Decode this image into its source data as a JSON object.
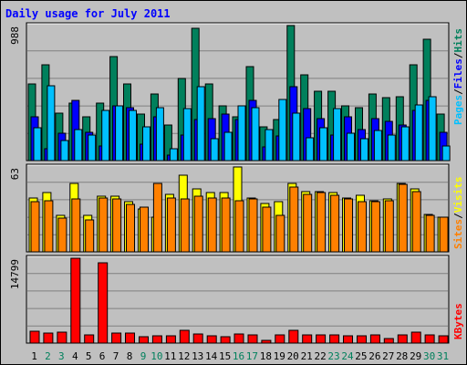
{
  "chart_data": [
    {
      "type": "bar",
      "title": "Daily usage for July 2011",
      "max_label": "988",
      "ylim": [
        0,
        988
      ],
      "grid": true,
      "categories": [
        "1",
        "2",
        "3",
        "4",
        "5",
        "6",
        "7",
        "8",
        "9",
        "10",
        "11",
        "12",
        "13",
        "14",
        "15",
        "16",
        "17",
        "18",
        "19",
        "20",
        "21",
        "22",
        "23",
        "24",
        "25",
        "26",
        "27",
        "28",
        "29",
        "30",
        "31"
      ],
      "weekend_days": [
        "2",
        "3",
        "9",
        "10",
        "16",
        "17",
        "23",
        "24",
        "30",
        "31"
      ],
      "series": [
        {
          "name": "Hits",
          "color": "#00805c",
          "values": [
            560,
            700,
            350,
            420,
            320,
            420,
            760,
            560,
            340,
            490,
            260,
            600,
            970,
            560,
            400,
            320,
            690,
            250,
            300,
            990,
            630,
            510,
            510,
            400,
            390,
            490,
            460,
            470,
            700,
            890,
            340
          ]
        },
        {
          "name": "Files",
          "color": "#0000ff",
          "values": [
            320,
            90,
            200,
            440,
            210,
            110,
            400,
            390,
            120,
            320,
            40,
            190,
            300,
            310,
            340,
            300,
            440,
            100,
            180,
            540,
            380,
            310,
            190,
            320,
            230,
            310,
            290,
            260,
            370,
            440,
            210
          ]
        },
        {
          "name": "Pages",
          "color": "#00c0ff",
          "values": [
            240,
            550,
            150,
            230,
            190,
            370,
            400,
            370,
            250,
            390,
            90,
            380,
            540,
            160,
            210,
            400,
            390,
            230,
            450,
            350,
            170,
            240,
            380,
            200,
            160,
            220,
            190,
            250,
            410,
            470,
            110
          ]
        }
      ]
    },
    {
      "type": "bar",
      "max_label": "63",
      "ylim": [
        0,
        63
      ],
      "grid": true,
      "categories": [
        "1",
        "2",
        "3",
        "4",
        "5",
        "6",
        "7",
        "8",
        "9",
        "10",
        "11",
        "12",
        "13",
        "14",
        "15",
        "16",
        "17",
        "18",
        "19",
        "20",
        "21",
        "22",
        "23",
        "24",
        "25",
        "26",
        "27",
        "28",
        "29",
        "30",
        "31"
      ],
      "series": [
        {
          "name": "Visits",
          "color": "#ffff00",
          "values": [
            40,
            44,
            27,
            51,
            27,
            41,
            41,
            37,
            32,
            26,
            43,
            57,
            47,
            44,
            44,
            63,
            40,
            36,
            37,
            51,
            45,
            45,
            44,
            40,
            42,
            38,
            39,
            51,
            47,
            28,
            26
          ]
        },
        {
          "name": "Sites",
          "color": "#ff8000",
          "values": [
            37,
            38,
            25,
            39,
            24,
            40,
            39,
            35,
            33,
            51,
            40,
            39,
            41,
            40,
            40,
            38,
            39,
            33,
            27,
            48,
            43,
            44,
            42,
            39,
            37,
            37,
            38,
            50,
            45,
            27,
            26
          ]
        }
      ]
    },
    {
      "type": "bar",
      "max_label": "14799",
      "ylim": [
        0,
        14799
      ],
      "grid": true,
      "categories": [
        "1",
        "2",
        "3",
        "4",
        "5",
        "6",
        "7",
        "8",
        "9",
        "10",
        "11",
        "12",
        "13",
        "14",
        "15",
        "16",
        "17",
        "18",
        "19",
        "20",
        "21",
        "22",
        "23",
        "24",
        "25",
        "26",
        "27",
        "28",
        "29",
        "30",
        "31"
      ],
      "series": [
        {
          "name": "KBytes",
          "color": "#ff0000",
          "values": [
            2000,
            1700,
            1850,
            14799,
            1400,
            14000,
            1800,
            1750,
            1050,
            1200,
            1350,
            2150,
            1650,
            1350,
            1100,
            1550,
            1450,
            500,
            1500,
            2150,
            1400,
            1400,
            1450,
            1350,
            1350,
            1400,
            800,
            1400,
            1900,
            1450,
            1350
          ]
        }
      ]
    }
  ],
  "legend": {
    "hits": "Hits",
    "files": "Files",
    "pages": "Pages",
    "visits": "Visits",
    "sites": "Sites",
    "kbytes": "KBytes",
    "separator": "/"
  },
  "colors": {
    "background": "#c0c0c0",
    "title": "#0000ff",
    "axis_label_weekday": "#000000",
    "axis_label_weekend": "#00805c",
    "grid": "#808080"
  }
}
